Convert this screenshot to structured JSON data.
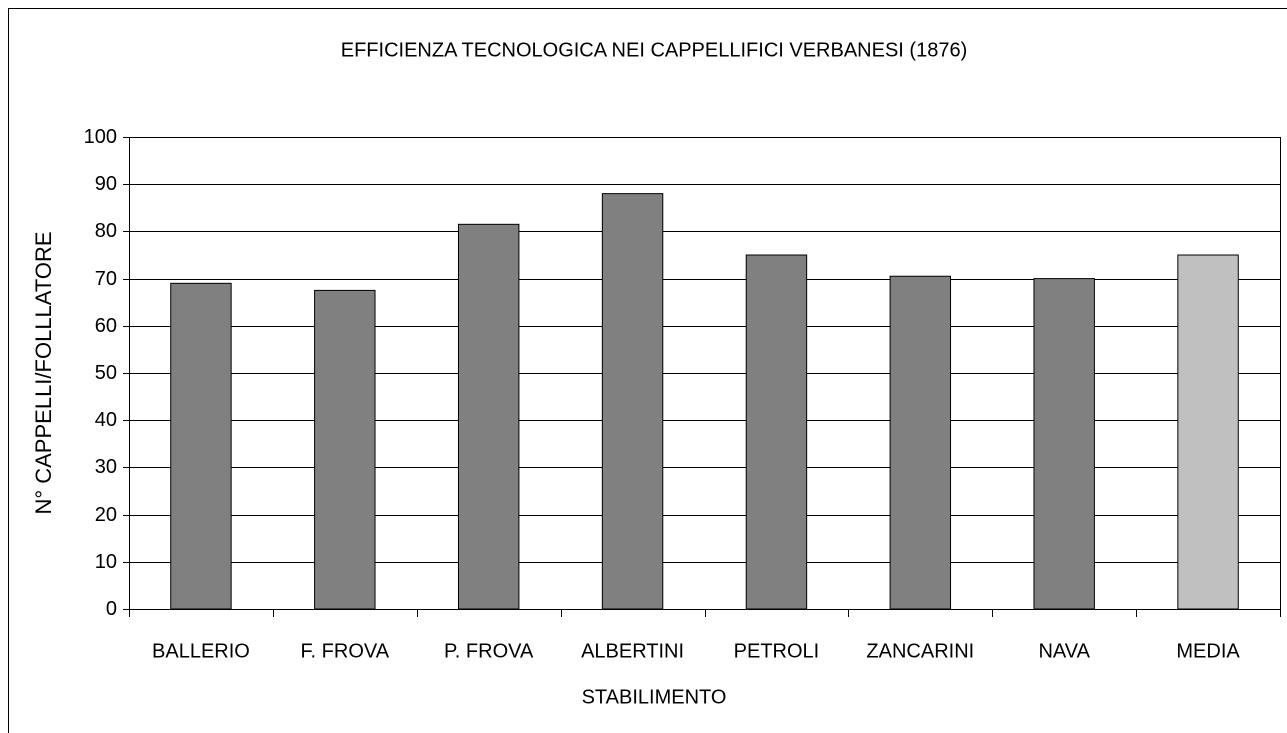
{
  "chart_data": {
    "type": "bar",
    "title": "EFFICIENZA TECNOLOGICA NEI CAPPELLIFICI VERBANESI (1876)",
    "x_label": "STABILIMENTO",
    "y_label": "N° CAPPELLI/FOLLLATORE",
    "categories": [
      "BALLERIO",
      "F. FROVA",
      "P. FROVA",
      "ALBERTINI",
      "PETROLI",
      "ZANCARINI",
      "NAVA",
      "MEDIA"
    ],
    "values": [
      69,
      67.5,
      81.5,
      88,
      75,
      70.5,
      70,
      75
    ],
    "colors": [
      "#808080",
      "#808080",
      "#808080",
      "#808080",
      "#808080",
      "#808080",
      "#808080",
      "#c0c0c0"
    ],
    "ylim": [
      0,
      100
    ],
    "yticks": [
      0,
      10,
      20,
      30,
      40,
      50,
      60,
      70,
      80,
      90,
      100
    ],
    "grid": true
  }
}
